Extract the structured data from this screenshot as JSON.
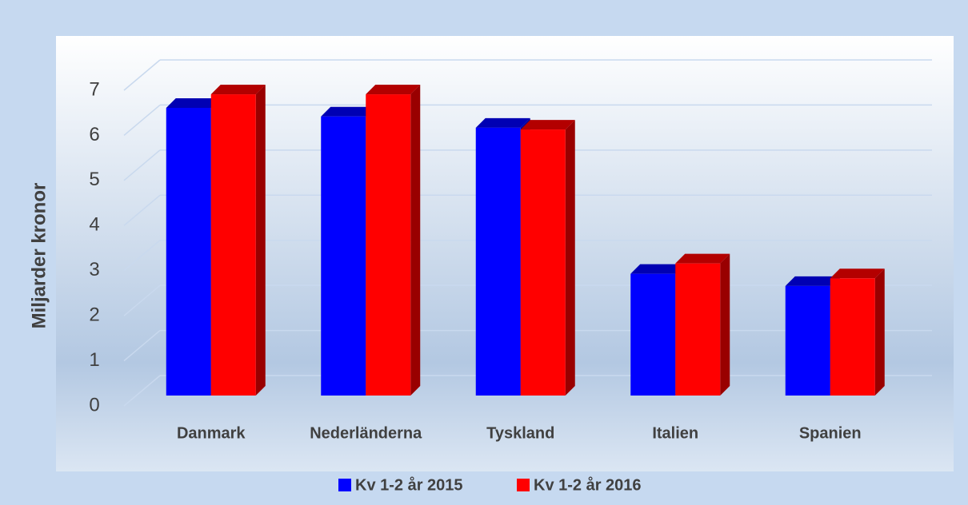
{
  "chart_data": {
    "type": "bar3d",
    "y_label": "Miljarder kronor",
    "categories": [
      "Danmark",
      "Nederländerna",
      "Tyskland",
      "Italien",
      "Spanien"
    ],
    "series": [
      {
        "name": "Kv 1-2 år 2015",
        "color": "#0000ff",
        "values": [
          6.38,
          6.19,
          5.94,
          2.7,
          2.43
        ]
      },
      {
        "name": "Kv 1-2 år 2016",
        "color": "#ff0000",
        "values": [
          6.68,
          6.68,
          5.9,
          2.93,
          2.6
        ]
      }
    ],
    "ylim": [
      0,
      7
    ],
    "yticks": [
      0,
      1,
      2,
      3,
      4,
      5,
      6,
      7
    ],
    "grid": true,
    "legend": "bottom"
  }
}
